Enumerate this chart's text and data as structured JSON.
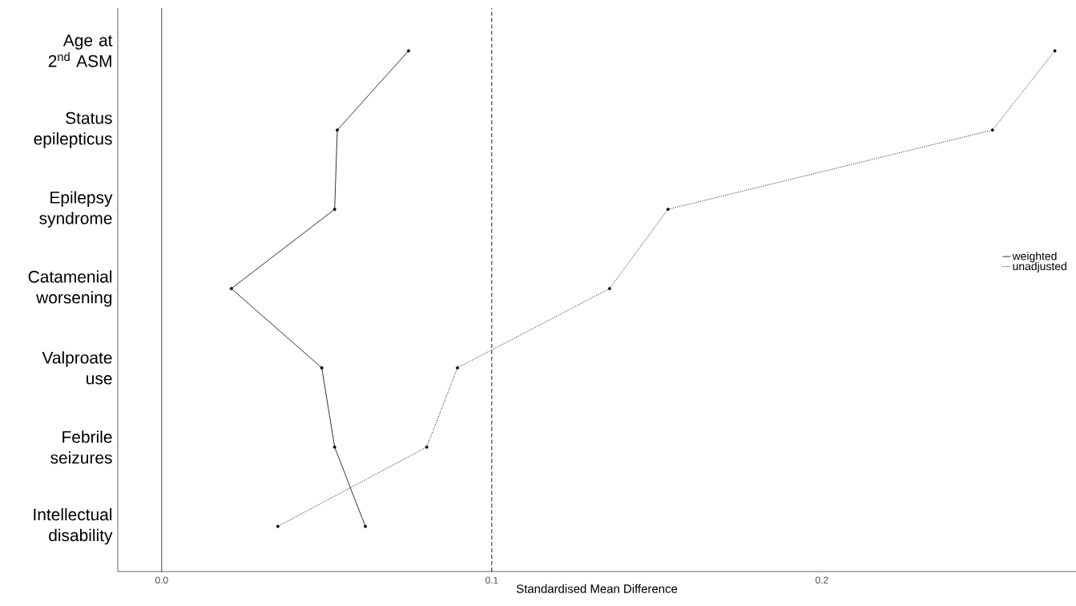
{
  "chart_data": {
    "type": "line",
    "orientation": "horizontal",
    "xlabel": "Standardised Mean Difference",
    "categories": [
      "Age at 2$^{nd}$ ASM",
      "Status epilepticus",
      "Epilepsy syndrome",
      "Catamenial worsening",
      "Valproate use",
      "Febrile seizures",
      "Intellectual disability"
    ],
    "series": [
      {
        "name": "weighted",
        "color": "#000000",
        "line_style": "solid",
        "values": [
          0.0748,
          0.0532,
          0.0524,
          0.0211,
          0.0485,
          0.0524,
          0.0617
        ]
      },
      {
        "name": "unadjusted",
        "color": "#000000",
        "line_style": "dotted",
        "values": [
          0.2706,
          0.2517,
          0.1534,
          0.1357,
          0.0896,
          0.0803,
          0.0352
        ]
      }
    ],
    "xlim": [
      -0.0133,
      0.277
    ],
    "xticks": [
      {
        "value": 0,
        "label": "0.0"
      },
      {
        "value": 0.1,
        "label": "0.1"
      },
      {
        "value": 0.2,
        "label": "0.2"
      }
    ],
    "ref_lines": [
      {
        "axis": "x",
        "value": 0,
        "color": "#333333",
        "line_style": "solid"
      },
      {
        "axis": "x",
        "value": 0.1,
        "color": "#000000",
        "line_style": "dashed"
      }
    ],
    "marker": "circle",
    "legend": "right",
    "grid": false
  }
}
